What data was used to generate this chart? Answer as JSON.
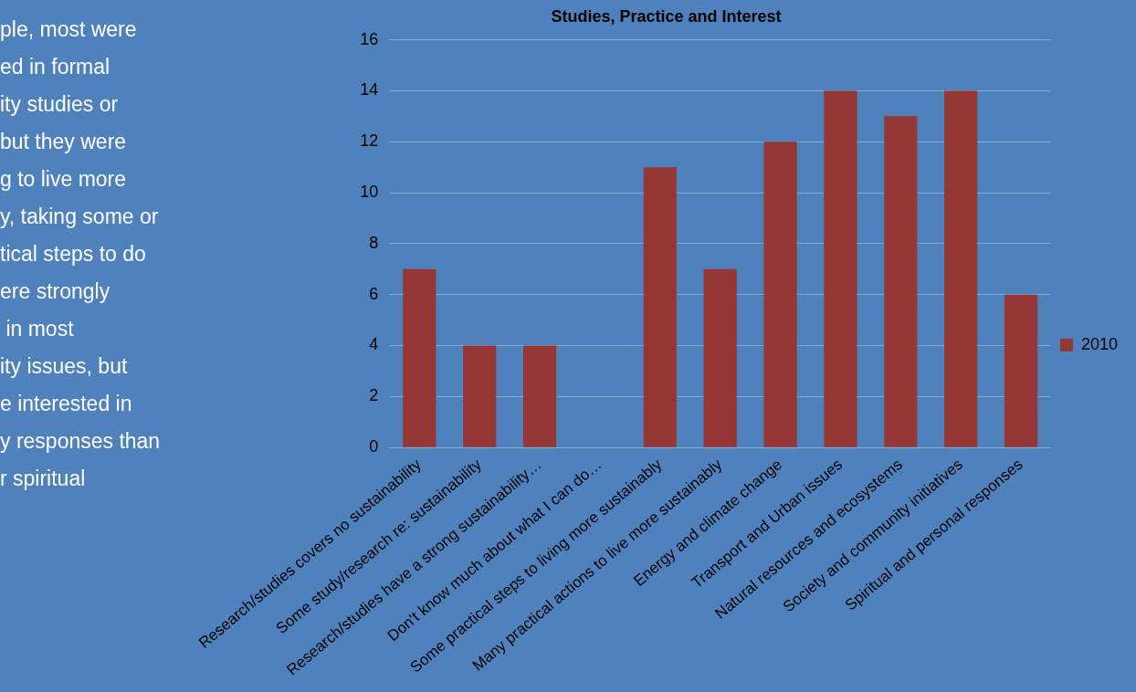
{
  "chart_data": {
    "type": "bar",
    "title": "Studies, Practice and Interest",
    "categories": [
      "Research/studies covers no sustainability",
      "Some study/research re: sustainability",
      "Research/studies have a strong sustainability…",
      "Don't know much about what I can do…",
      "Some practical steps to living more sustainably",
      "Many practical actions to live more sustainably",
      "Energy and climate change",
      "Transport and Urban issues",
      "Natural resources and ecosystems",
      "Society and community initiatives",
      "Spiritual and personal responses"
    ],
    "series": [
      {
        "name": "2010",
        "color": "#953735",
        "values": [
          7,
          4,
          4,
          0,
          11,
          7,
          12,
          14,
          13,
          14,
          6
        ]
      }
    ],
    "ylim": [
      0,
      16
    ],
    "yticks": [
      0,
      2,
      4,
      6,
      8,
      10,
      12,
      14,
      16
    ],
    "grid": "y",
    "legend": "right",
    "annotations": [
      "ple, most were",
      "ed in formal",
      "ity studies or",
      "but they were",
      "g to live more",
      "y, taking some or",
      "tical steps to do",
      "ere strongly",
      " in most",
      "ity issues, but",
      "e interested in",
      "y responses than",
      "r spiritual"
    ]
  }
}
